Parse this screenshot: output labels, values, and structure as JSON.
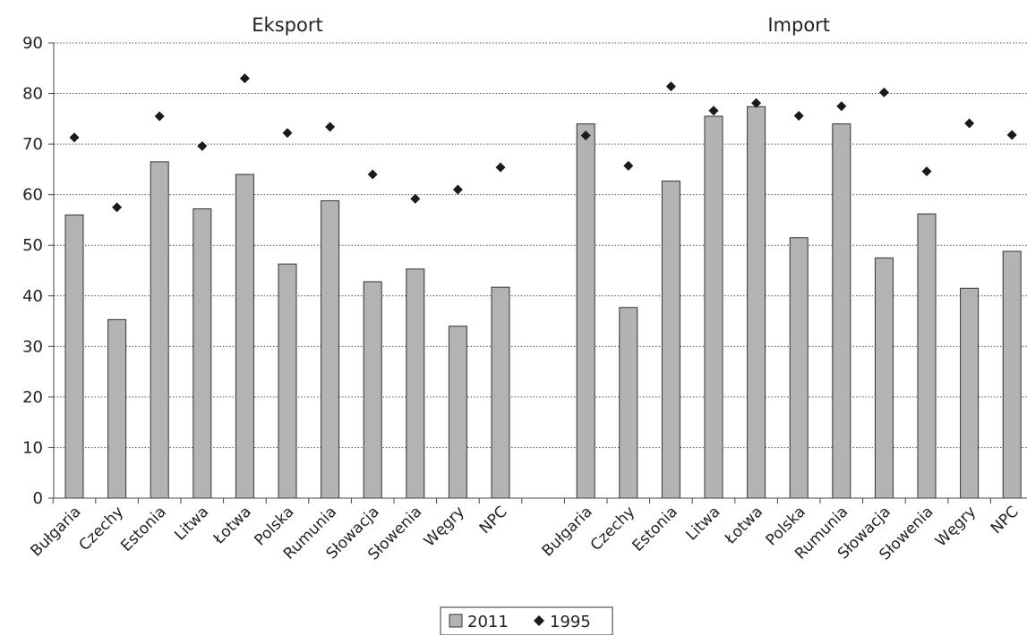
{
  "chart_data": {
    "type": "bar",
    "panels": [
      "Eksport",
      "Import"
    ],
    "categories": [
      "Bułgaria",
      "Czechy",
      "Estonia",
      "Litwa",
      "Łotwa",
      "Polska",
      "Rumunia",
      "Słowacja",
      "Słowenia",
      "Węgry",
      "NPC"
    ],
    "series": [
      {
        "name": "2011",
        "mark": "bar",
        "color": "#b3b3b3",
        "values": {
          "Eksport": [
            56,
            35.3,
            66.5,
            57.2,
            64,
            46.3,
            58.8,
            42.8,
            45.3,
            34,
            41.7
          ],
          "Import": [
            74,
            37.7,
            62.7,
            75.5,
            77.4,
            51.5,
            74,
            47.5,
            56.2,
            41.5,
            48.8
          ]
        }
      },
      {
        "name": "1995",
        "mark": "diamond",
        "color": "#1a1a1a",
        "values": {
          "Eksport": [
            71.3,
            57.5,
            75.5,
            69.6,
            83,
            72.2,
            73.4,
            64,
            59.2,
            61,
            65.4
          ],
          "Import": [
            71.7,
            65.7,
            81.4,
            76.6,
            78.1,
            75.6,
            77.5,
            80.2,
            64.6,
            74.1,
            71.8
          ]
        }
      }
    ],
    "y_ticks": [
      0,
      10,
      20,
      30,
      40,
      50,
      60,
      70,
      80,
      90
    ],
    "ylim": [
      0,
      90
    ],
    "grid": "horizontal-dotted",
    "legend_position": "bottom-center"
  }
}
